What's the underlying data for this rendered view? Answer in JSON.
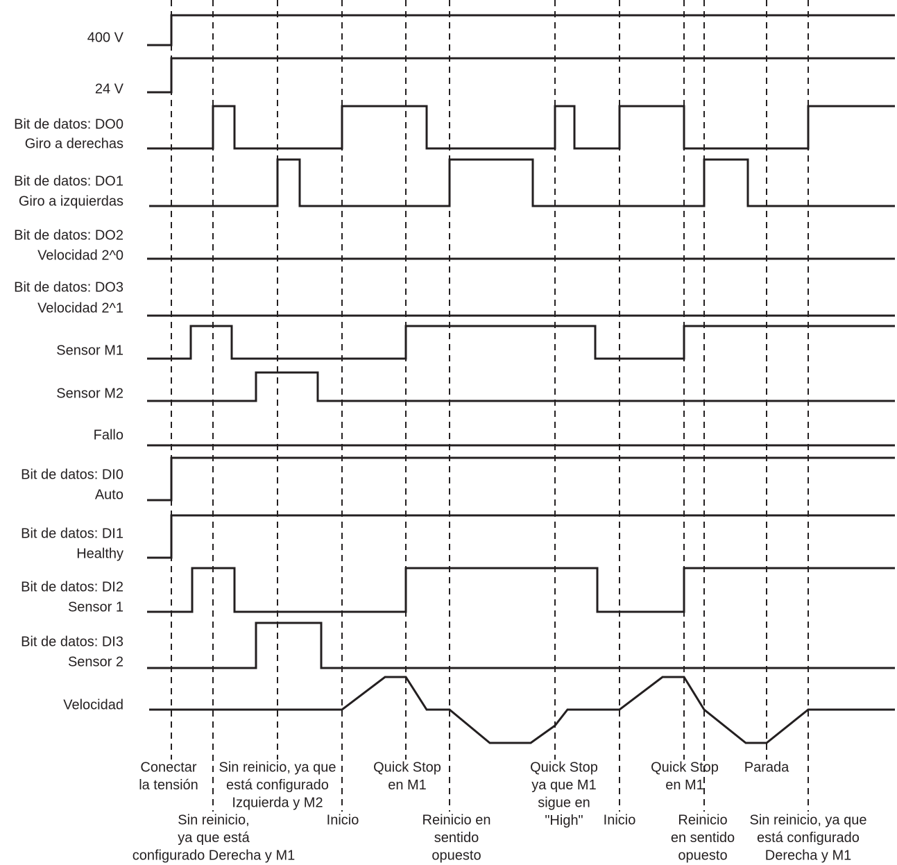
{
  "signals": [
    {
      "lines": [
        "400 V"
      ]
    },
    {
      "lines": [
        "24 V"
      ]
    },
    {
      "lines": [
        "Bit de datos: DO0",
        "Giro a derechas"
      ]
    },
    {
      "lines": [
        "Bit de datos: DO1",
        "Giro a izquierdas"
      ]
    },
    {
      "lines": [
        "Bit de datos: DO2",
        "Velocidad 2^0"
      ]
    },
    {
      "lines": [
        "Bit de datos: DO3",
        "Velocidad 2^1"
      ]
    },
    {
      "lines": [
        "Sensor M1"
      ]
    },
    {
      "lines": [
        "Sensor M2"
      ]
    },
    {
      "lines": [
        "Fallo"
      ]
    },
    {
      "lines": [
        "Bit de datos: DI0",
        "Auto"
      ]
    },
    {
      "lines": [
        "Bit de datos: DI1",
        "Healthy"
      ]
    },
    {
      "lines": [
        "Bit de datos: DI2",
        "Sensor 1"
      ]
    },
    {
      "lines": [
        "Bit de datos: DI3",
        "Sensor 2"
      ]
    },
    {
      "lines": [
        "Velocidad"
      ]
    }
  ],
  "events": [
    {
      "lines": [
        "Conectar",
        "la tensión"
      ]
    },
    {
      "lines": [
        "Sin reinicio,",
        "ya que está",
        "configurado Derecha y M1"
      ]
    },
    {
      "lines": [
        "Sin reinicio, ya que",
        "está configurado",
        "Izquierda y M2"
      ]
    },
    {
      "lines": [
        "Inicio"
      ]
    },
    {
      "lines": [
        "Quick Stop",
        "en M1"
      ]
    },
    {
      "lines": [
        "Reinicio en",
        "sentido",
        "opuesto"
      ]
    },
    {
      "lines": [
        "Quick Stop",
        "ya que M1",
        "sigue en",
        "\"High\""
      ]
    },
    {
      "lines": [
        "Inicio"
      ]
    },
    {
      "lines": [
        "Quick Stop",
        "en M1"
      ]
    },
    {
      "lines": [
        "Reinicio",
        "en sentido",
        "opuesto"
      ]
    },
    {
      "lines": [
        "Parada"
      ]
    },
    {
      "lines": [
        "Sin reinicio, ya que",
        "está configurado",
        "Derecha y M1"
      ]
    }
  ]
}
